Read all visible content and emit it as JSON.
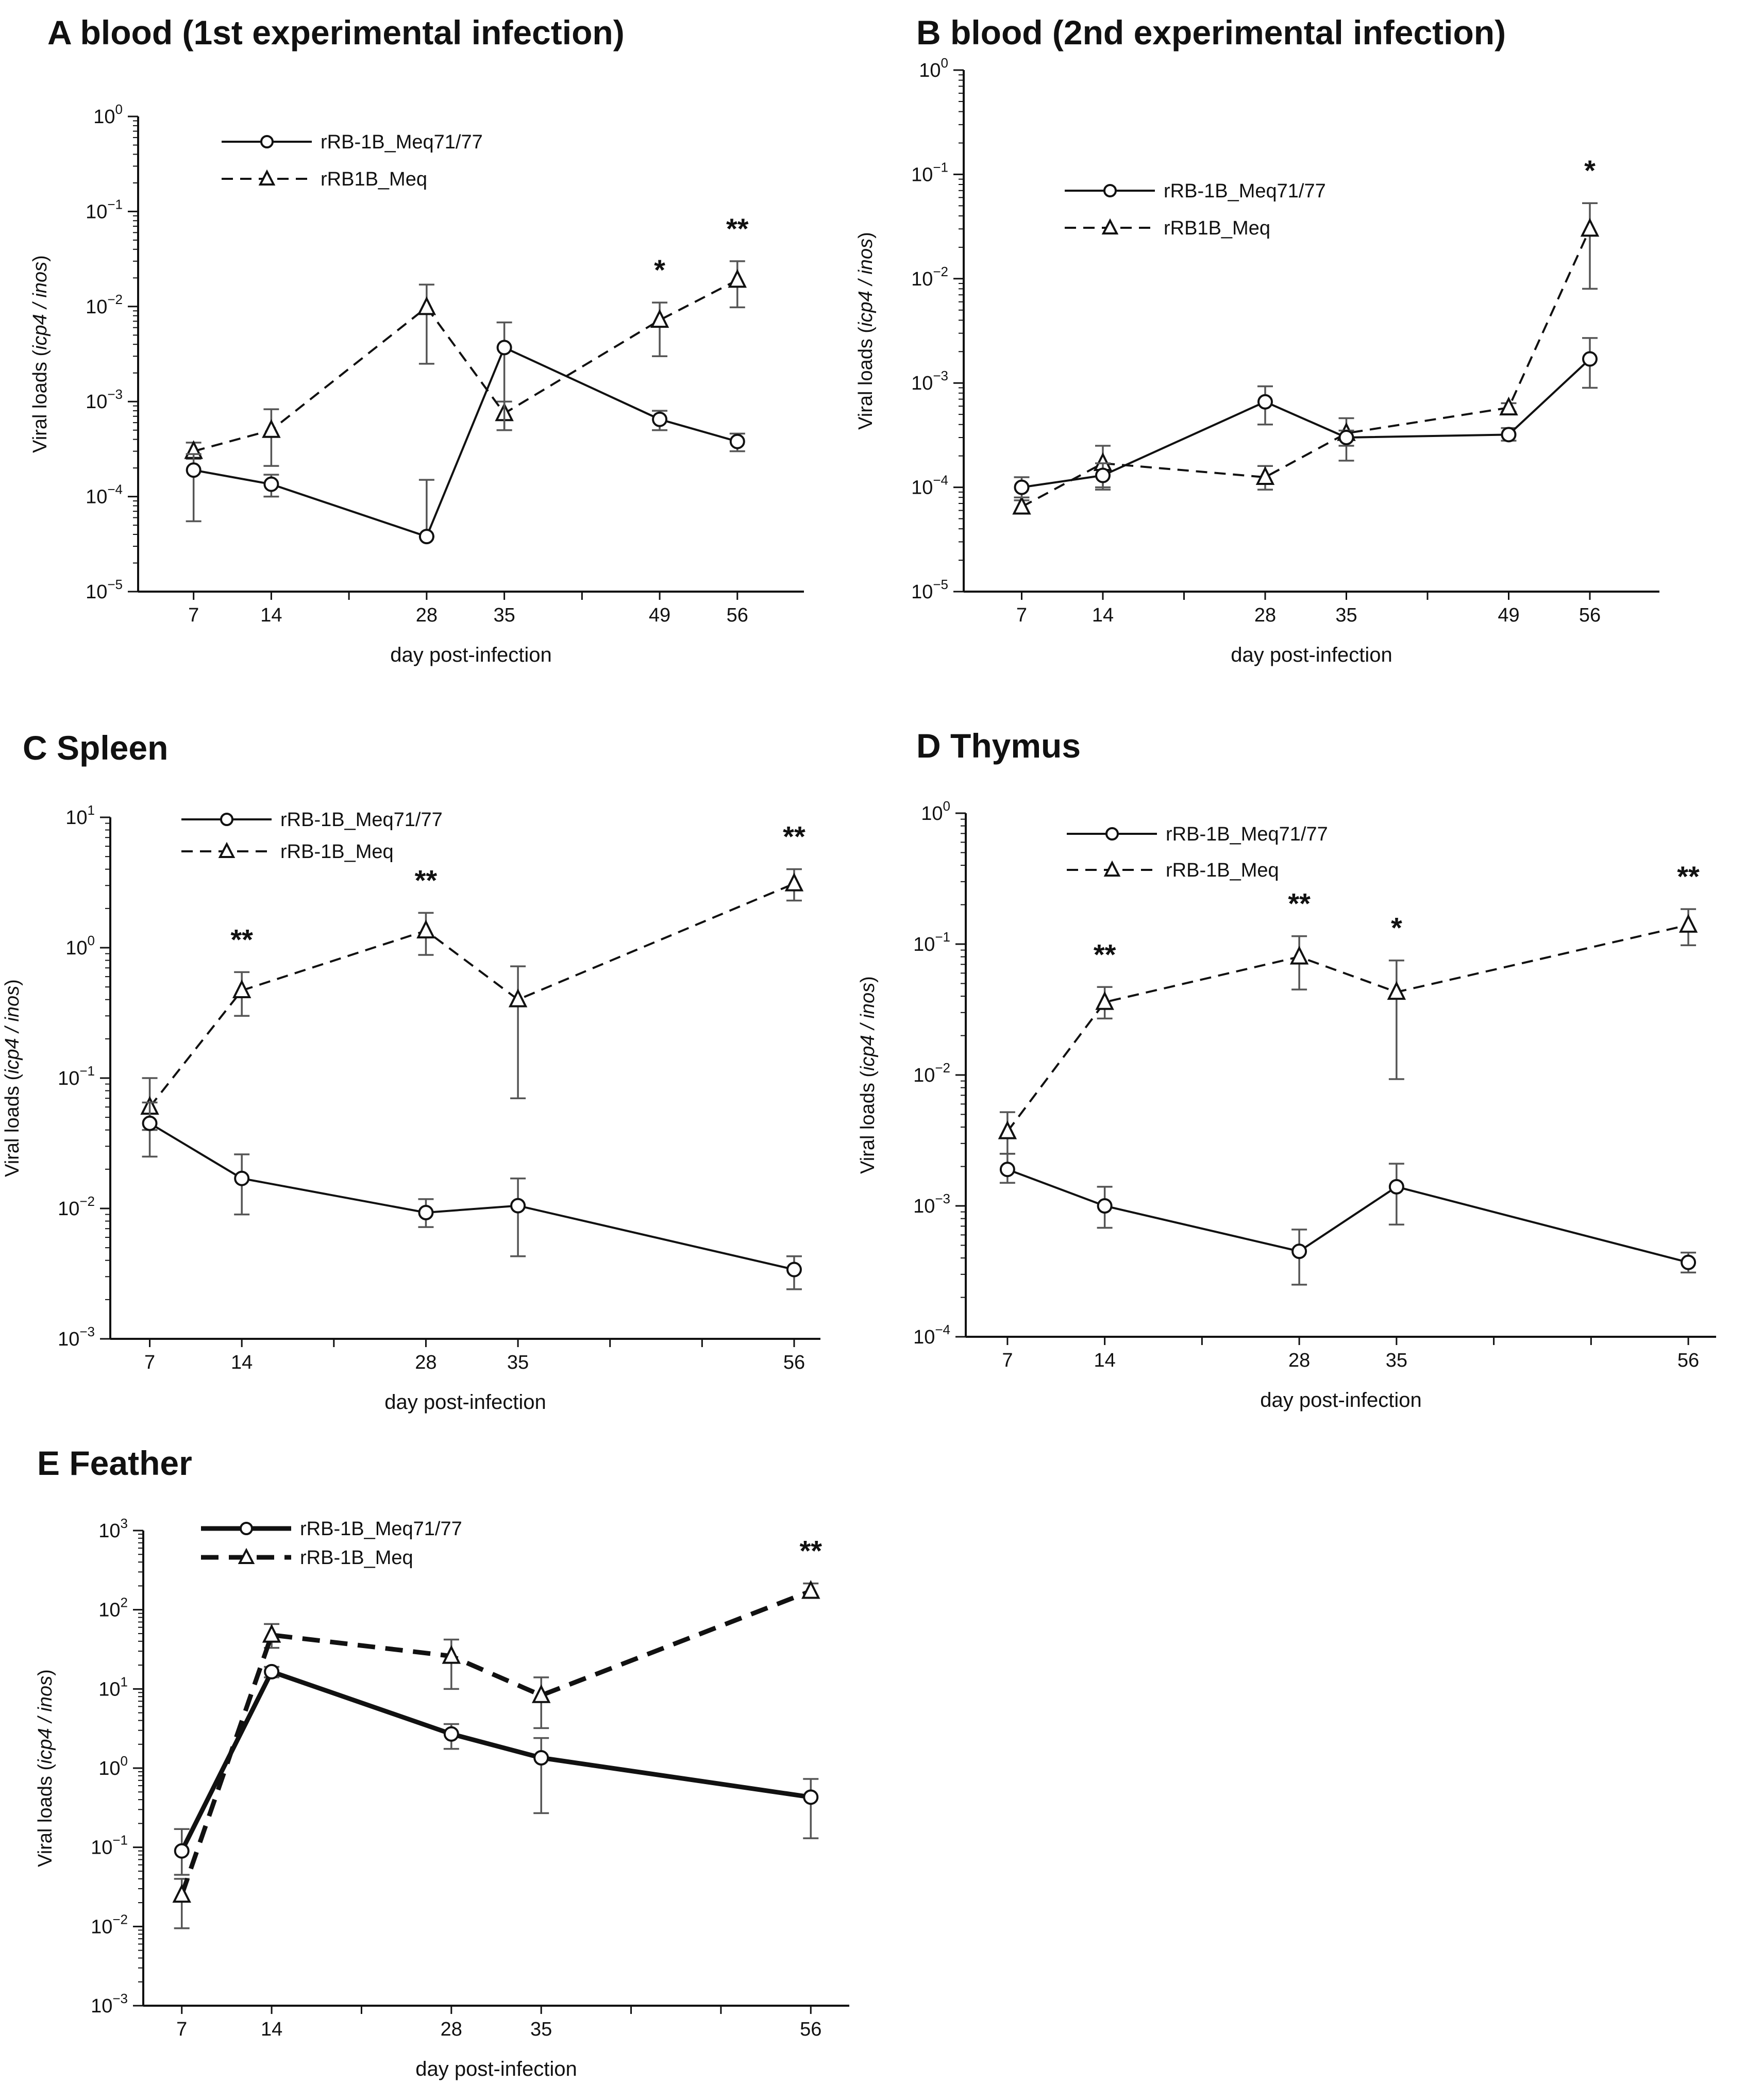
{
  "chart_data": [
    {
      "id": "A",
      "type": "line",
      "title": "A blood (1st experimental infection)",
      "xlabel": "day post-infection",
      "ylabel": "Viral loads (icp4 / inos)",
      "yscale": "log",
      "ylim_exp": [
        -5,
        0
      ],
      "xlim": [
        2,
        62
      ],
      "xticks": [
        7,
        14,
        28,
        35,
        49,
        56
      ],
      "legend_position": "top-left",
      "series": [
        {
          "name": "rRB-1B_Meq71/77",
          "marker": "circle",
          "dash": "solid",
          "x": [
            7,
            14,
            28,
            35,
            49,
            56
          ],
          "y": [
            0.00019,
            0.000135,
            3.8e-05,
            0.0037,
            0.00065,
            0.00038
          ],
          "err_low": [
            5.5e-05,
            0.0001,
            3.8e-05,
            0.0005,
            0.0005,
            0.0003
          ],
          "err_high": [
            0.00028,
            0.00017,
            0.00015,
            0.0068,
            0.0008,
            0.00046
          ]
        },
        {
          "name": "rRB1B_Meq",
          "marker": "triangle",
          "dash": "dashed",
          "x": [
            7,
            14,
            28,
            35,
            49,
            56
          ],
          "y": [
            0.0003,
            0.0005,
            0.0098,
            0.00075,
            0.0072,
            0.019
          ],
          "err_low": [
            0.00025,
            0.00021,
            0.0025,
            0.0005,
            0.003,
            0.0098
          ],
          "err_high": [
            0.00037,
            0.00083,
            0.017,
            0.001,
            0.011,
            0.03
          ]
        }
      ],
      "annotations": [
        {
          "x": 49,
          "text": "*"
        },
        {
          "x": 56,
          "text": "**"
        }
      ]
    },
    {
      "id": "B",
      "type": "line",
      "title": "B blood (2nd experimental infection)",
      "xlabel": "day post-infection",
      "ylabel": "Viral loads (icp4 / inos)",
      "yscale": "log",
      "ylim_exp": [
        -5,
        0
      ],
      "xlim": [
        2,
        62
      ],
      "xticks": [
        7,
        14,
        28,
        35,
        49,
        56
      ],
      "legend_position": "top-left",
      "series": [
        {
          "name": "rRB-1B_Meq71/77",
          "marker": "circle",
          "dash": "solid",
          "x": [
            7,
            14,
            28,
            35,
            49,
            56
          ],
          "y": [
            0.0001,
            0.00013,
            0.00066,
            0.0003,
            0.00032,
            0.0017
          ],
          "err_low": [
            8e-05,
            0.0001,
            0.0004,
            0.00025,
            0.00028,
            0.0009
          ],
          "err_high": [
            0.000125,
            0.00017,
            0.00093,
            0.00035,
            0.00037,
            0.0027
          ]
        },
        {
          "name": "rRB1B_Meq",
          "marker": "triangle",
          "dash": "dashed",
          "x": [
            7,
            14,
            28,
            35,
            49,
            56
          ],
          "y": [
            6.5e-05,
            0.00017,
            0.000125,
            0.00033,
            0.00058,
            0.03
          ],
          "err_low": [
            5.8e-05,
            9.5e-05,
            9.5e-05,
            0.00018,
            0.00053,
            0.008
          ],
          "err_high": [
            7.5e-05,
            0.00025,
            0.00016,
            0.00046,
            0.00064,
            0.053
          ]
        }
      ],
      "annotations": [
        {
          "x": 56,
          "text": "*"
        }
      ]
    },
    {
      "id": "C",
      "type": "line",
      "title": "C Spleen",
      "xlabel": "day post-infection",
      "ylabel": "Viral loads (icp4 / inos)",
      "yscale": "log",
      "ylim_exp": [
        -3,
        1
      ],
      "xlim": [
        4,
        58
      ],
      "xticks": [
        7,
        14,
        28,
        35,
        56
      ],
      "legend_position": "top-left",
      "series": [
        {
          "name": "rRB-1B_Meq71/77",
          "marker": "circle",
          "dash": "solid",
          "x": [
            7,
            14,
            28,
            35,
            56
          ],
          "y": [
            0.045,
            0.017,
            0.0093,
            0.0105,
            0.0034
          ],
          "err_low": [
            0.025,
            0.009,
            0.0072,
            0.0043,
            0.0024
          ],
          "err_high": [
            0.065,
            0.026,
            0.0118,
            0.017,
            0.0043
          ]
        },
        {
          "name": "rRB-1B_Meq",
          "marker": "triangle",
          "dash": "dashed",
          "x": [
            7,
            14,
            28,
            35,
            56
          ],
          "y": [
            0.06,
            0.47,
            1.35,
            0.4,
            3.1
          ],
          "err_low": [
            0.04,
            0.3,
            0.88,
            0.07,
            2.3
          ],
          "err_high": [
            0.1,
            0.65,
            1.85,
            0.72,
            4.0
          ]
        }
      ],
      "annotations": [
        {
          "x": 14,
          "text": "**"
        },
        {
          "x": 28,
          "text": "**"
        },
        {
          "x": 56,
          "text": "**"
        }
      ]
    },
    {
      "id": "D",
      "type": "line",
      "title": "D Thymus",
      "xlabel": "day post-infection",
      "ylabel": "Viral loads (icp4 / inos)",
      "yscale": "log",
      "ylim_exp": [
        -4,
        0
      ],
      "xlim": [
        4,
        58
      ],
      "xticks": [
        7,
        14,
        28,
        35,
        56
      ],
      "legend_position": "top-left",
      "series": [
        {
          "name": "rRB-1B_Meq71/77",
          "marker": "circle",
          "dash": "solid",
          "x": [
            7,
            14,
            28,
            35,
            56
          ],
          "y": [
            0.0019,
            0.001,
            0.00045,
            0.0014,
            0.00037
          ],
          "err_low": [
            0.0015,
            0.00068,
            0.00025,
            0.00072,
            0.00031
          ],
          "err_high": [
            0.0025,
            0.0014,
            0.00066,
            0.0021,
            0.00044
          ]
        },
        {
          "name": "rRB-1B_Meq",
          "marker": "triangle",
          "dash": "dashed",
          "x": [
            7,
            14,
            28,
            35,
            56
          ],
          "y": [
            0.0037,
            0.036,
            0.08,
            0.043,
            0.14
          ],
          "err_low": [
            0.0025,
            0.027,
            0.045,
            0.0093,
            0.098
          ],
          "err_high": [
            0.0052,
            0.047,
            0.115,
            0.075,
            0.185
          ]
        }
      ],
      "annotations": [
        {
          "x": 14,
          "text": "**"
        },
        {
          "x": 28,
          "text": "**"
        },
        {
          "x": 35,
          "text": "*"
        },
        {
          "x": 56,
          "text": "**"
        }
      ]
    },
    {
      "id": "E",
      "type": "line",
      "title": "E Feather",
      "xlabel": "day post-infection",
      "ylabel": "Viral loads (icp4 / inos)",
      "yscale": "log",
      "ylim_exp": [
        -3,
        3
      ],
      "xlim": [
        4,
        59
      ],
      "xticks": [
        7,
        14,
        28,
        35,
        56
      ],
      "legend_position": "top-left",
      "bold": true,
      "series": [
        {
          "name": "rRB-1B_Meq71/77",
          "marker": "circle",
          "dash": "solid",
          "x": [
            7,
            14,
            28,
            35,
            56
          ],
          "y": [
            0.09,
            16.5,
            2.7,
            1.35,
            0.43
          ],
          "err_low": [
            0.045,
            14,
            1.75,
            0.27,
            0.13
          ],
          "err_high": [
            0.17,
            19,
            3.6,
            2.4,
            0.73
          ]
        },
        {
          "name": "rRB-1B_Meq",
          "marker": "triangle",
          "dash": "dashed",
          "x": [
            7,
            14,
            28,
            35,
            56
          ],
          "y": [
            0.025,
            48,
            26,
            8.3,
            172
          ],
          "err_low": [
            0.0095,
            33,
            10,
            3.2,
            150
          ],
          "err_high": [
            0.04,
            66,
            42,
            14,
            215
          ]
        }
      ],
      "annotations": [
        {
          "x": 56,
          "text": "**"
        }
      ]
    }
  ]
}
